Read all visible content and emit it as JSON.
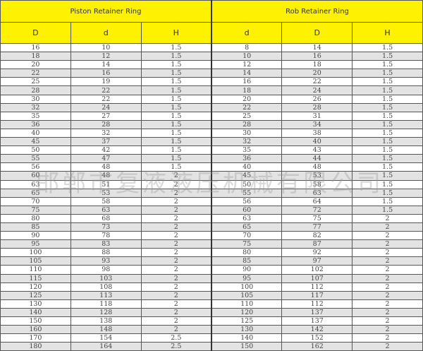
{
  "piston": {
    "title": "Piston Retainer Ring",
    "headers": [
      "D",
      "d",
      "H"
    ],
    "rows": [
      [
        "16",
        "10",
        "1.5"
      ],
      [
        "18",
        "12",
        "1.5"
      ],
      [
        "20",
        "14",
        "1.5"
      ],
      [
        "22",
        "16",
        "1.5"
      ],
      [
        "25",
        "19",
        "1.5"
      ],
      [
        "28",
        "22",
        "1.5"
      ],
      [
        "30",
        "22",
        "1.5"
      ],
      [
        "32",
        "24",
        "1.5"
      ],
      [
        "35",
        "27",
        "1.5"
      ],
      [
        "36",
        "28",
        "1.5"
      ],
      [
        "40",
        "32",
        "1.5"
      ],
      [
        "45",
        "37",
        "1.5"
      ],
      [
        "50",
        "42",
        "1.5"
      ],
      [
        "55",
        "47",
        "1.5"
      ],
      [
        "56",
        "48",
        "1.5"
      ],
      [
        "60",
        "48",
        "2"
      ],
      [
        "63",
        "51",
        "2"
      ],
      [
        "65",
        "53",
        "2"
      ],
      [
        "70",
        "58",
        "2"
      ],
      [
        "75",
        "63",
        "2"
      ],
      [
        "80",
        "68",
        "2"
      ],
      [
        "85",
        "73",
        "2"
      ],
      [
        "90",
        "78",
        "2"
      ],
      [
        "95",
        "83",
        "2"
      ],
      [
        "100",
        "88",
        "2"
      ],
      [
        "105",
        "93",
        "2"
      ],
      [
        "110",
        "98",
        "2"
      ],
      [
        "115",
        "103",
        "2"
      ],
      [
        "120",
        "108",
        "2"
      ],
      [
        "125",
        "113",
        "2"
      ],
      [
        "130",
        "118",
        "2"
      ],
      [
        "140",
        "128",
        "2"
      ],
      [
        "150",
        "138",
        "2"
      ],
      [
        "160",
        "148",
        "2"
      ],
      [
        "170",
        "154",
        "2.5"
      ],
      [
        "180",
        "164",
        "2.5"
      ]
    ]
  },
  "rod": {
    "title": "Rob Retainer Ring",
    "headers": [
      "d",
      "D",
      "H"
    ],
    "rows": [
      [
        "8",
        "14",
        "1.5"
      ],
      [
        "10",
        "16",
        "1.5"
      ],
      [
        "12",
        "18",
        "1.5"
      ],
      [
        "14",
        "20",
        "1.5"
      ],
      [
        "16",
        "22",
        "1.5"
      ],
      [
        "18",
        "24",
        "1.5"
      ],
      [
        "20",
        "26",
        "1.5"
      ],
      [
        "22",
        "28",
        "1.5"
      ],
      [
        "25",
        "31",
        "1.5"
      ],
      [
        "28",
        "34",
        "1.5"
      ],
      [
        "30",
        "38",
        "1.5"
      ],
      [
        "32",
        "40",
        "1.5"
      ],
      [
        "35",
        "43",
        "1.5"
      ],
      [
        "36",
        "44",
        "1.5"
      ],
      [
        "40",
        "48",
        "1.5"
      ],
      [
        "45",
        "53",
        "1.5"
      ],
      [
        "50",
        "58",
        "1.5"
      ],
      [
        "55",
        "63",
        "1.5"
      ],
      [
        "56",
        "64",
        "1.5"
      ],
      [
        "60",
        "72",
        "1.5"
      ],
      [
        "63",
        "75",
        "2"
      ],
      [
        "65",
        "77",
        "2"
      ],
      [
        "70",
        "82",
        "2"
      ],
      [
        "75",
        "87",
        "2"
      ],
      [
        "80",
        "92",
        "2"
      ],
      [
        "85",
        "97",
        "2"
      ],
      [
        "90",
        "102",
        "2"
      ],
      [
        "95",
        "107",
        "2"
      ],
      [
        "100",
        "112",
        "2"
      ],
      [
        "105",
        "117",
        "2"
      ],
      [
        "110",
        "112",
        "2"
      ],
      [
        "120",
        "137",
        "2"
      ],
      [
        "125",
        "137",
        "2"
      ],
      [
        "130",
        "142",
        "2"
      ],
      [
        "140",
        "152",
        "2"
      ],
      [
        "150",
        "162",
        "2"
      ]
    ]
  },
  "watermark": "邯郸市复液液压机械有限公司",
  "colors": {
    "header": "#fff200",
    "alt_row": "#e3e3e3"
  }
}
